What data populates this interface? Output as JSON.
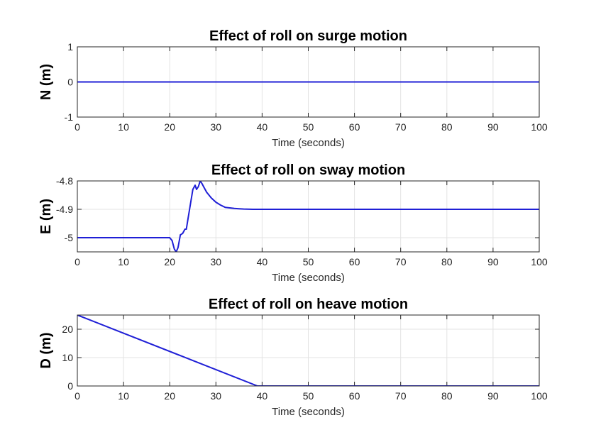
{
  "chart_data": [
    {
      "type": "line",
      "title": "Effect of roll on surge motion",
      "xlabel": "Time (seconds)",
      "ylabel": "N (m)",
      "xlim": [
        0,
        100
      ],
      "ylim": [
        -1,
        1
      ],
      "xticks": [
        "0",
        "10",
        "20",
        "30",
        "40",
        "50",
        "60",
        "70",
        "80",
        "90",
        "100"
      ],
      "yticks": [
        "-1",
        "0",
        "1"
      ],
      "grid": true,
      "color": "#1f1fd6",
      "series": [
        {
          "x": [
            0,
            100
          ],
          "y": [
            0,
            0
          ]
        }
      ]
    },
    {
      "type": "line",
      "title": "Effect of roll on sway motion",
      "xlabel": "Time (seconds)",
      "ylabel": "E (m)",
      "xlim": [
        0,
        100
      ],
      "ylim": [
        -5.05,
        -4.8
      ],
      "xticks": [
        "0",
        "10",
        "20",
        "30",
        "40",
        "50",
        "60",
        "70",
        "80",
        "90",
        "100"
      ],
      "yticks": [
        "-5",
        "-4.9",
        "-4.8"
      ],
      "grid": true,
      "color": "#1f1fd6",
      "series": [
        {
          "x": [
            0,
            20,
            20.5,
            21,
            21.4,
            21.8,
            22.3,
            22.8,
            23.3,
            23.6,
            24,
            24.5,
            25,
            25.5,
            25.8,
            26.2,
            26.6,
            27,
            27.5,
            28,
            29,
            30,
            31,
            32,
            33,
            34,
            35,
            36,
            38,
            40,
            45,
            50,
            60,
            70,
            80,
            90,
            100
          ],
          "y": [
            -5,
            -5,
            -5.01,
            -5.04,
            -5.05,
            -5.035,
            -4.99,
            -4.985,
            -4.97,
            -4.97,
            -4.93,
            -4.88,
            -4.83,
            -4.815,
            -4.83,
            -4.82,
            -4.8,
            -4.81,
            -4.825,
            -4.84,
            -4.86,
            -4.875,
            -4.885,
            -4.893,
            -4.895,
            -4.897,
            -4.898,
            -4.899,
            -4.9,
            -4.9,
            -4.9,
            -4.9,
            -4.9,
            -4.9,
            -4.9,
            -4.9,
            -4.9
          ]
        }
      ]
    },
    {
      "type": "line",
      "title": "Effect of roll on heave motion",
      "xlabel": "Time (seconds)",
      "ylabel": "D (m)",
      "xlim": [
        0,
        100
      ],
      "ylim": [
        0,
        25
      ],
      "xticks": [
        "0",
        "10",
        "20",
        "30",
        "40",
        "50",
        "60",
        "70",
        "80",
        "90",
        "100"
      ],
      "yticks": [
        "0",
        "10",
        "20"
      ],
      "grid": true,
      "color": "#1f1fd6",
      "series": [
        {
          "x": [
            0,
            39,
            100
          ],
          "y": [
            25,
            0,
            0
          ]
        }
      ]
    }
  ]
}
